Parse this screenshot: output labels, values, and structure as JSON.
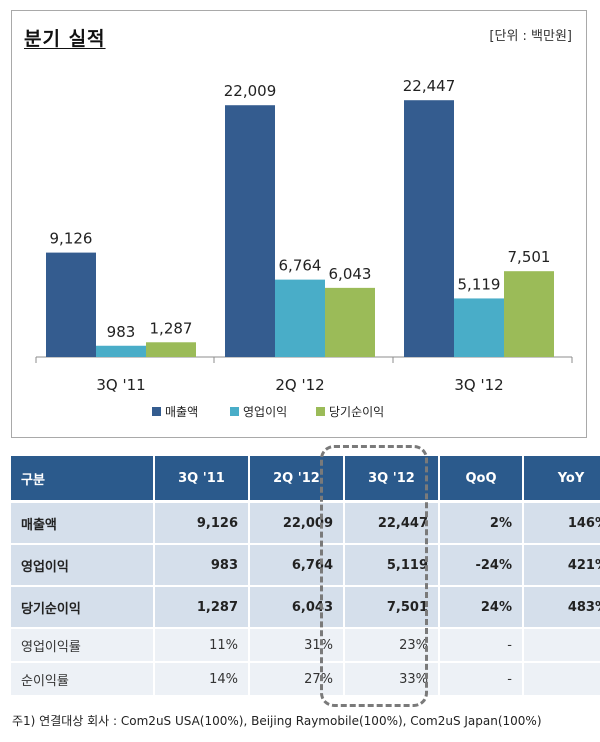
{
  "title": "분기 실적",
  "unit_note": "[단위 : 백만원]",
  "chart_data": {
    "type": "bar",
    "categories": [
      "3Q '11",
      "2Q '12",
      "3Q '12"
    ],
    "series": [
      {
        "name": "매출액",
        "values": [
          9126,
          22009,
          22447
        ],
        "labels": [
          "9,126",
          "22,009",
          "22,447"
        ],
        "color": "#345c8f"
      },
      {
        "name": "영업이익",
        "values": [
          983,
          6764,
          5119
        ],
        "labels": [
          "983",
          "6,764",
          "5,119"
        ],
        "color": "#49adc8"
      },
      {
        "name": "당기순이익",
        "values": [
          1287,
          6043,
          7501
        ],
        "labels": [
          "1,287",
          "6,043",
          "7,501"
        ],
        "color": "#9bbb58"
      }
    ],
    "ylim": [
      0,
      25000
    ],
    "legend_position": "bottom",
    "grid": false
  },
  "table": {
    "headers": [
      "구분",
      "3Q '11",
      "2Q '12",
      "3Q '12",
      "QoQ",
      "YoY"
    ],
    "rows": [
      {
        "cells": [
          "매출액",
          "9,126",
          "22,009",
          "22,447",
          "2%",
          "146%"
        ],
        "style": "main"
      },
      {
        "cells": [
          "영업이익",
          "983",
          "6,764",
          "5,119",
          "-24%",
          "421%"
        ],
        "style": "main"
      },
      {
        "cells": [
          "당기순이익",
          "1,287",
          "6,043",
          "7,501",
          "24%",
          "483%"
        ],
        "style": "main"
      },
      {
        "cells": [
          "영업이익률",
          "11%",
          "31%",
          "23%",
          "-",
          "-"
        ],
        "style": "sub"
      },
      {
        "cells": [
          "순이익률",
          "14%",
          "27%",
          "33%",
          "-",
          "-"
        ],
        "style": "sub"
      }
    ]
  },
  "footnote": "주1) 연결대상 회사 : Com2uS USA(100%), Beijing Raymobile(100%), Com2uS Japan(100%)"
}
